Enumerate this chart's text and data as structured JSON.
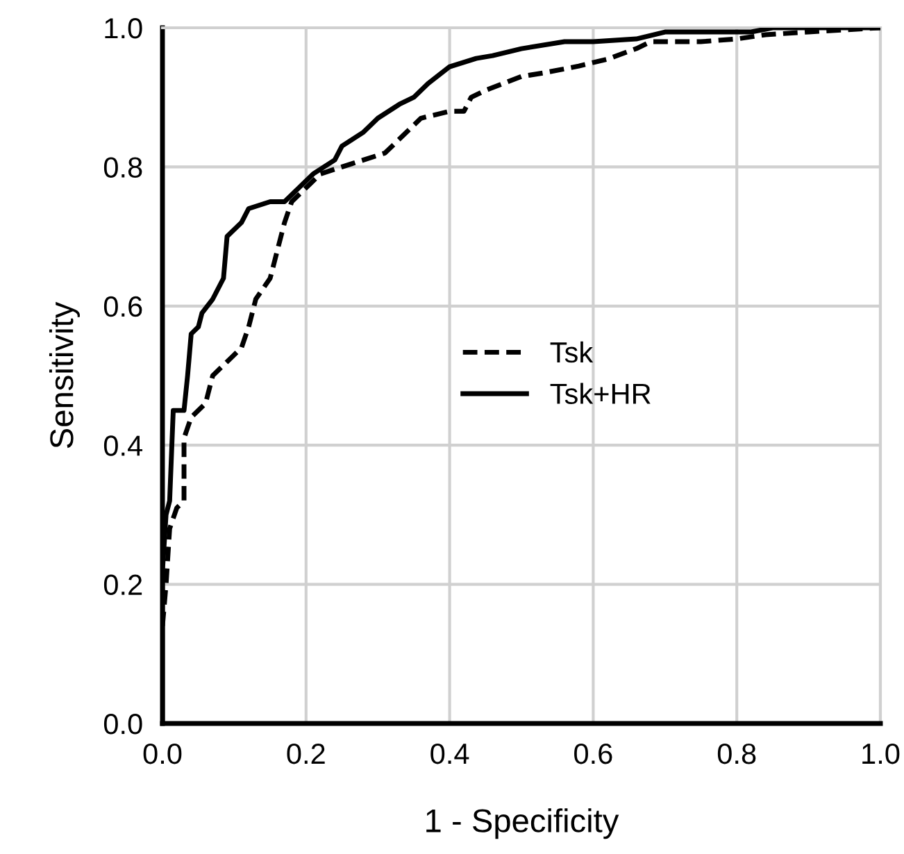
{
  "chart_data": {
    "type": "line",
    "xlabel": "1 - Specificity",
    "ylabel": "Sensitivity",
    "xlim": [
      0,
      1
    ],
    "ylim": [
      0,
      1
    ],
    "xticks": [
      {
        "value": 0,
        "label": "0.0"
      },
      {
        "value": 0.2,
        "label": "0.2"
      },
      {
        "value": 0.4,
        "label": "0.4"
      },
      {
        "value": 0.6,
        "label": "0.6"
      },
      {
        "value": 0.8,
        "label": "0.8"
      },
      {
        "value": 1,
        "label": "1.0"
      }
    ],
    "yticks": [
      {
        "value": 0,
        "label": "0.0"
      },
      {
        "value": 0.2,
        "label": "0.2"
      },
      {
        "value": 0.4,
        "label": "0.4"
      },
      {
        "value": 0.6,
        "label": "0.6"
      },
      {
        "value": 0.8,
        "label": "0.8"
      },
      {
        "value": 1,
        "label": "1.0"
      }
    ],
    "grid": true,
    "legend": "center",
    "marker": "none",
    "series": [
      {
        "name": "Tsk",
        "color": "#000000",
        "line_style": "dashed",
        "x": [
          0,
          0.005,
          0.01,
          0.02,
          0.03,
          0.03,
          0.04,
          0.06,
          0.07,
          0.09,
          0.11,
          0.12,
          0.13,
          0.15,
          0.16,
          0.17,
          0.18,
          0.2,
          0.22,
          0.25,
          0.28,
          0.31,
          0.33,
          0.36,
          0.4,
          0.42,
          0.43,
          0.45,
          0.5,
          0.53,
          0.58,
          0.62,
          0.66,
          0.68,
          0.75,
          0.8,
          0.84,
          0.9,
          1
        ],
        "values": [
          0.14,
          0.2,
          0.28,
          0.31,
          0.32,
          0.41,
          0.44,
          0.46,
          0.5,
          0.52,
          0.54,
          0.57,
          0.61,
          0.64,
          0.68,
          0.72,
          0.75,
          0.77,
          0.79,
          0.8,
          0.81,
          0.82,
          0.84,
          0.87,
          0.88,
          0.88,
          0.9,
          0.91,
          0.93,
          0.935,
          0.945,
          0.955,
          0.97,
          0.98,
          0.98,
          0.984,
          0.99,
          0.994,
          1
        ]
      },
      {
        "name": "Tsk+HR",
        "color": "#000000",
        "line_style": "solid",
        "x": [
          0,
          0,
          0.005,
          0.01,
          0.015,
          0.03,
          0.035,
          0.04,
          0.05,
          0.055,
          0.07,
          0.085,
          0.09,
          0.11,
          0.12,
          0.15,
          0.17,
          0.19,
          0.21,
          0.24,
          0.25,
          0.28,
          0.3,
          0.33,
          0.35,
          0.37,
          0.4,
          0.437,
          0.46,
          0.5,
          0.56,
          0.6,
          0.66,
          0.7,
          0.82,
          0.85,
          1
        ],
        "values": [
          0,
          0.22,
          0.3,
          0.32,
          0.45,
          0.45,
          0.5,
          0.56,
          0.57,
          0.59,
          0.61,
          0.64,
          0.7,
          0.72,
          0.74,
          0.75,
          0.75,
          0.77,
          0.79,
          0.81,
          0.83,
          0.85,
          0.87,
          0.89,
          0.9,
          0.92,
          0.944,
          0.956,
          0.96,
          0.97,
          0.98,
          0.98,
          0.984,
          0.994,
          0.994,
          1,
          1
        ]
      }
    ]
  }
}
